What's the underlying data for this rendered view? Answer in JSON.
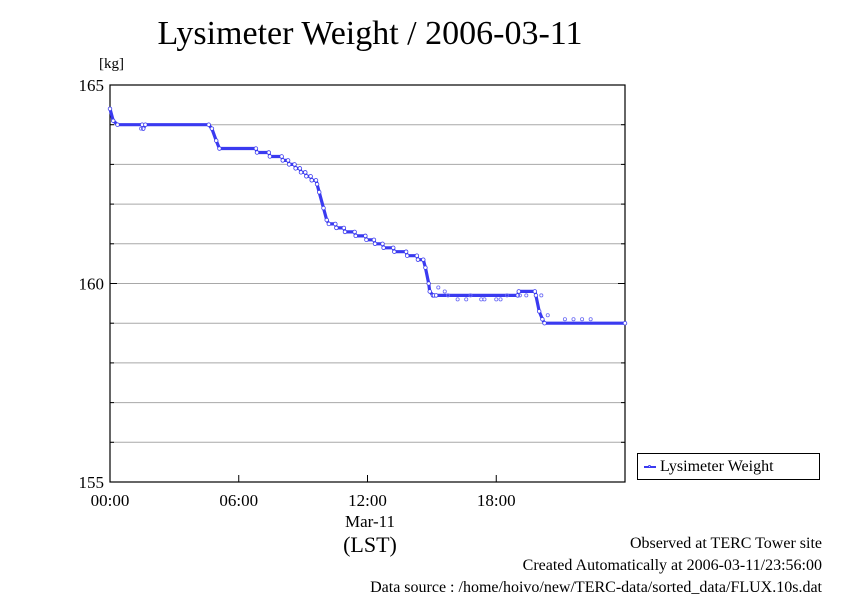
{
  "chart_data": {
    "type": "line",
    "title": "Lysimeter Weight / 2006-03-11",
    "ylabel": "[kg]",
    "xlabel_date": "Mar-11",
    "xlabel_tz": "(LST)",
    "ylim": [
      155,
      165
    ],
    "yticks": [
      "155",
      "160",
      "165"
    ],
    "xlim": [
      0,
      24
    ],
    "xticks": [
      "00:00",
      "06:00",
      "12:00",
      "18:00"
    ],
    "grid": true,
    "legend": "right",
    "series": [
      {
        "name": "Lysimeter Weight",
        "color": "#3a3af0",
        "x": [
          0.0,
          0.15,
          0.35,
          1.5,
          1.55,
          1.65,
          4.6,
          4.75,
          4.95,
          5.1,
          6.8,
          6.85,
          7.4,
          7.45,
          8.0,
          8.05,
          8.3,
          8.35,
          8.6,
          8.65,
          8.85,
          8.9,
          9.1,
          9.15,
          9.35,
          9.4,
          9.6,
          9.65,
          9.75,
          9.95,
          10.1,
          10.2,
          10.5,
          10.55,
          10.9,
          10.95,
          11.4,
          11.45,
          11.9,
          11.95,
          12.3,
          12.35,
          12.7,
          12.75,
          13.2,
          13.25,
          13.8,
          13.85,
          14.3,
          14.35,
          14.6,
          14.7,
          14.85,
          14.9,
          15.05,
          15.1,
          15.2,
          19.0,
          19.05,
          19.8,
          19.85,
          20.0,
          20.15,
          20.25,
          24.0
        ],
        "y": [
          164.4,
          164.1,
          164.0,
          164.0,
          163.9,
          164.0,
          164.0,
          163.9,
          163.6,
          163.4,
          163.4,
          163.3,
          163.3,
          163.2,
          163.2,
          163.1,
          163.1,
          163.0,
          163.0,
          162.9,
          162.9,
          162.8,
          162.8,
          162.7,
          162.7,
          162.6,
          162.6,
          162.5,
          162.3,
          161.9,
          161.6,
          161.5,
          161.5,
          161.4,
          161.4,
          161.3,
          161.3,
          161.2,
          161.2,
          161.1,
          161.1,
          161.0,
          161.0,
          160.9,
          160.9,
          160.8,
          160.8,
          160.7,
          160.7,
          160.6,
          160.6,
          160.4,
          160.0,
          159.8,
          159.7,
          159.7,
          159.7,
          159.7,
          159.8,
          159.8,
          159.7,
          159.3,
          159.1,
          159.0,
          159.0
        ]
      }
    ],
    "outliers": {
      "x": [
        1.45,
        15.3,
        15.6,
        15.75,
        16.2,
        16.6,
        16.8,
        17.3,
        17.45,
        18.0,
        18.2,
        18.5,
        19.1,
        19.4,
        20.1,
        20.4,
        21.2,
        21.6,
        22.0,
        22.4
      ],
      "y": [
        163.9,
        159.9,
        159.8,
        159.7,
        159.6,
        159.6,
        159.7,
        159.6,
        159.6,
        159.6,
        159.6,
        159.7,
        159.7,
        159.7,
        159.7,
        159.2,
        159.1,
        159.1,
        159.1,
        159.1
      ]
    }
  },
  "legend_label": "Lysimeter Weight",
  "footer": {
    "line1": "Observed at TERC Tower site",
    "line2": "Created Automatically at 2006-03-11/23:56:00",
    "line3": "Data source : /home/hoivo/new/TERC-data/sorted_data/FLUX.10s.dat"
  }
}
